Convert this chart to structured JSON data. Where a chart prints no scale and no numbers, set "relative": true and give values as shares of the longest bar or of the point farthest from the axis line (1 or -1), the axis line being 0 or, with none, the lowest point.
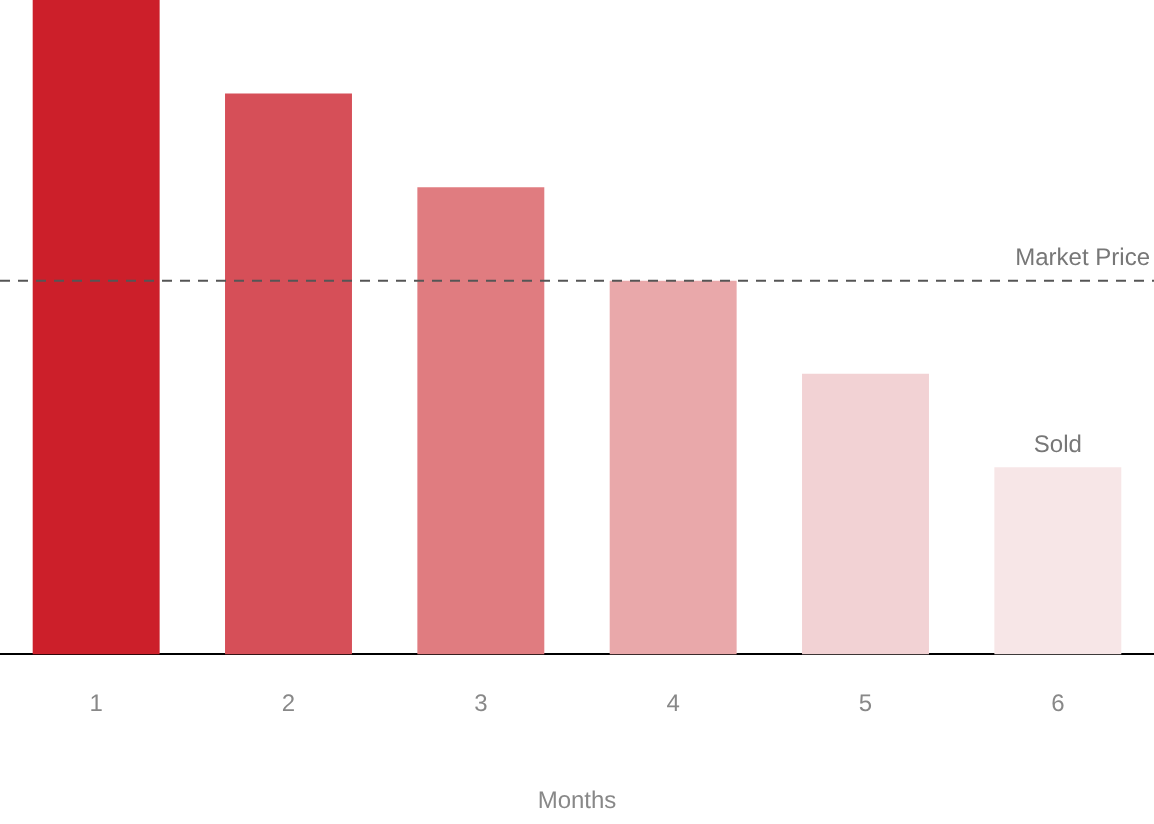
{
  "chart_data": {
    "type": "bar",
    "relative": true,
    "xlabel": "Months",
    "categories": [
      "1",
      "2",
      "3",
      "4",
      "5",
      "6"
    ],
    "values": [
      1,
      0.857,
      0.714,
      0.571,
      0.429,
      0.286
    ],
    "colors": [
      "#cc1f2a",
      "#d64f58",
      "#e07c80",
      "#e9a8aa",
      "#f2d2d4",
      "#f7e6e7"
    ],
    "ref_lines": [
      {
        "axis": "y",
        "value": 0.571,
        "label": "Market Price",
        "line_style": "dashed",
        "color": "#555555"
      }
    ],
    "annotations": [
      {
        "text": "Sold",
        "x": "6",
        "y": 0.286
      }
    ],
    "grid": false,
    "legend": false
  }
}
